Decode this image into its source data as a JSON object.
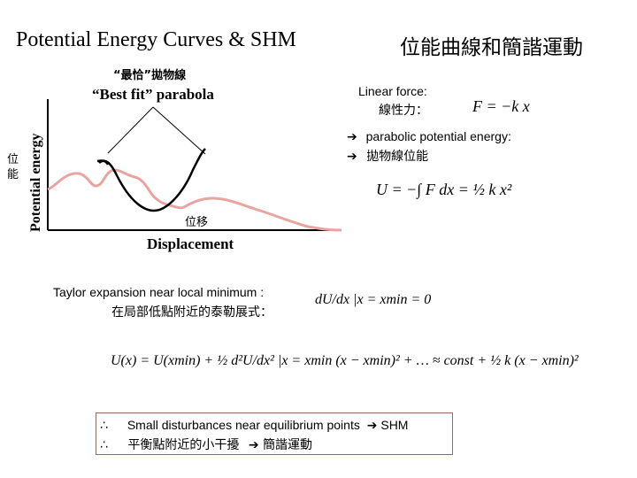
{
  "title_en": "Potential Energy Curves & SHM",
  "title_zh": "位能曲線和簡諧運動",
  "figure": {
    "best_fit_zh": "“最恰”拋物線",
    "best_fit_en": "“Best fit” parabola",
    "y_axis_label": "Potential energy",
    "y_axis_zh": "位能",
    "x_axis_label": "Displacement",
    "x_axis_zh": "位移"
  },
  "linear_force": {
    "label_en": "Linear force:",
    "label_zh": "線性力：",
    "formula": "F = −k x"
  },
  "parabolic": {
    "label_en": "parabolic potential energy:",
    "label_zh": "拋物線位能",
    "formula": "U = −∫ F dx = ½ k x²"
  },
  "taylor": {
    "label_en": "Taylor expansion near local minimum :",
    "label_zh": "在局部低點附近的泰勒展式：",
    "condition": "dU/dx |x = xmin = 0",
    "expansion": "U(x) = U(xmin) + ½ d²U/dx² |x = xmin (x − xmin)² + … ≈ const + ½ k (x − xmin)²"
  },
  "conclusion": {
    "line1_prefix": "∴",
    "line1": "Small disturbances near equilibrium points",
    "line1_suffix": "SHM",
    "line2_prefix": "∴",
    "line2": "平衡點附近的小干擾",
    "line2_suffix": "簡諧運動"
  },
  "colors": {
    "potential_curve": "#e8a4a0",
    "parabola": "#000000",
    "box_border": "#8a6d5a"
  }
}
